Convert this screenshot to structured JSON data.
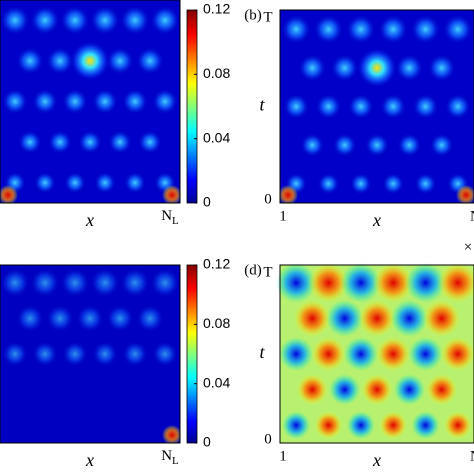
{
  "chart_data": [
    {
      "type": "heatmap",
      "scheme": "blue",
      "xlabel": "x",
      "x_end_label": "N",
      "x_end_sub": "L",
      "colorbar": {
        "lim": [
          0,
          0.12
        ],
        "ticks": [
          0,
          0.04,
          0.08,
          0.12
        ]
      }
    },
    {
      "type": "heatmap",
      "scheme": "blue",
      "panel_label": "(b)",
      "xlabel": "x",
      "ylabel": "t",
      "y_top_label": "T",
      "y_bottom_label": "0",
      "x_start_label": "1",
      "x_end_label": "N"
    },
    {
      "type": "heatmap",
      "scheme": "faint",
      "xlabel": "x",
      "x_end_label": "N",
      "x_end_sub": "L",
      "colorbar": {
        "lim": [
          0,
          0.12
        ],
        "ticks": [
          0,
          0.04,
          0.08,
          0.12
        ]
      }
    },
    {
      "type": "heatmap",
      "scheme": "jet",
      "panel_label": "(d)",
      "xlabel": "x",
      "ylabel": "t",
      "y_top_label": "T",
      "y_bottom_label": "0",
      "x_start_label": "1",
      "x_end_label": "N",
      "corner_mark": "×"
    }
  ]
}
